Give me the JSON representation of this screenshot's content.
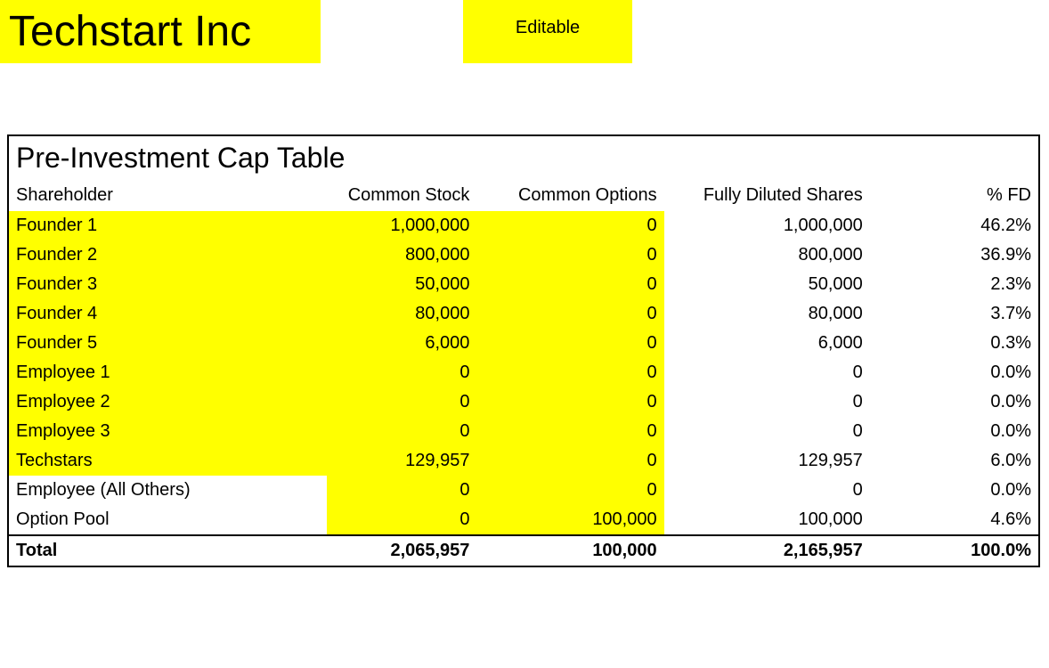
{
  "header": {
    "company_name": "Techstart Inc",
    "editable_label": "Editable"
  },
  "table": {
    "title": "Pre-Investment Cap Table",
    "columns": {
      "shareholder": "Shareholder",
      "common_stock": "Common Stock",
      "common_options": "Common Options",
      "fully_diluted": "Fully Diluted Shares",
      "pct_fd": "% FD"
    },
    "rows": [
      {
        "shareholder": "Founder 1",
        "common_stock": "1,000,000",
        "common_options": "0",
        "fully_diluted": "1,000,000",
        "pct_fd": "46.2%",
        "hl_sh": true,
        "hl_cs": true,
        "hl_co": true
      },
      {
        "shareholder": "Founder 2",
        "common_stock": "800,000",
        "common_options": "0",
        "fully_diluted": "800,000",
        "pct_fd": "36.9%",
        "hl_sh": true,
        "hl_cs": true,
        "hl_co": true
      },
      {
        "shareholder": "Founder 3",
        "common_stock": "50,000",
        "common_options": "0",
        "fully_diluted": "50,000",
        "pct_fd": "2.3%",
        "hl_sh": true,
        "hl_cs": true,
        "hl_co": true
      },
      {
        "shareholder": "Founder 4",
        "common_stock": "80,000",
        "common_options": "0",
        "fully_diluted": "80,000",
        "pct_fd": "3.7%",
        "hl_sh": true,
        "hl_cs": true,
        "hl_co": true
      },
      {
        "shareholder": "Founder 5",
        "common_stock": "6,000",
        "common_options": "0",
        "fully_diluted": "6,000",
        "pct_fd": "0.3%",
        "hl_sh": true,
        "hl_cs": true,
        "hl_co": true
      },
      {
        "shareholder": "Employee 1",
        "common_stock": "0",
        "common_options": "0",
        "fully_diluted": "0",
        "pct_fd": "0.0%",
        "hl_sh": true,
        "hl_cs": true,
        "hl_co": true
      },
      {
        "shareholder": "Employee 2",
        "common_stock": "0",
        "common_options": "0",
        "fully_diluted": "0",
        "pct_fd": "0.0%",
        "hl_sh": true,
        "hl_cs": true,
        "hl_co": true
      },
      {
        "shareholder": "Employee 3",
        "common_stock": "0",
        "common_options": "0",
        "fully_diluted": "0",
        "pct_fd": "0.0%",
        "hl_sh": true,
        "hl_cs": true,
        "hl_co": true
      },
      {
        "shareholder": "Techstars",
        "common_stock": "129,957",
        "common_options": "0",
        "fully_diluted": "129,957",
        "pct_fd": "6.0%",
        "hl_sh": true,
        "hl_cs": true,
        "hl_co": true
      },
      {
        "shareholder": "Employee (All Others)",
        "common_stock": "0",
        "common_options": "0",
        "fully_diluted": "0",
        "pct_fd": "0.0%",
        "hl_sh": false,
        "hl_cs": true,
        "hl_co": true
      },
      {
        "shareholder": "Option Pool",
        "common_stock": "0",
        "common_options": "100,000",
        "fully_diluted": "100,000",
        "pct_fd": "4.6%",
        "hl_sh": false,
        "hl_cs": true,
        "hl_co": true
      }
    ],
    "total": {
      "label": "Total",
      "common_stock": "2,065,957",
      "common_options": "100,000",
      "fully_diluted": "2,165,957",
      "pct_fd": "100.0%"
    }
  },
  "styling": {
    "highlight_color": "#ffff00",
    "background_color": "#ffffff",
    "text_color": "#000000",
    "border_color": "#000000",
    "title_fontsize": 48,
    "table_title_fontsize": 32,
    "cell_fontsize": 20,
    "font_family": "Arial"
  }
}
